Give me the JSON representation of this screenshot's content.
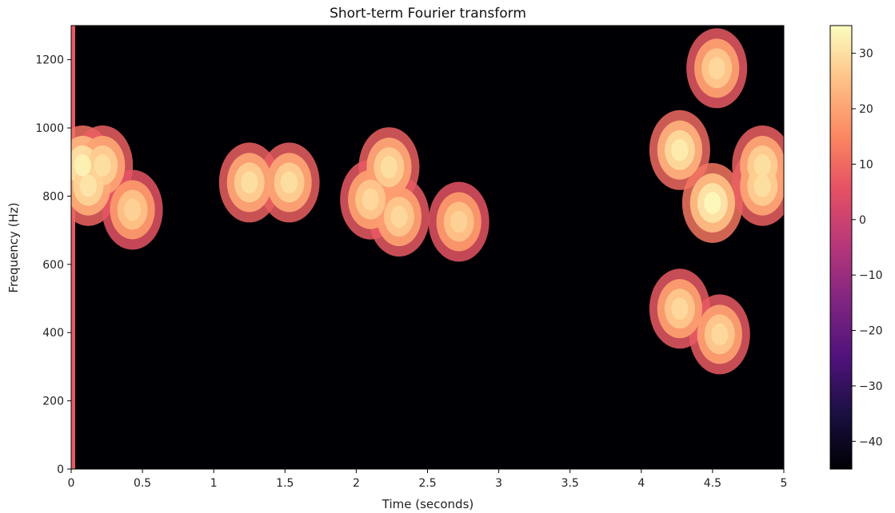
{
  "chart_data": {
    "type": "heatmap",
    "title": "Short-term Fourier transform",
    "xlabel": "Time (seconds)",
    "ylabel": "Frequency (Hz)",
    "xlim": [
      0,
      5
    ],
    "ylim": [
      0,
      1300
    ],
    "x_ticks": [
      0,
      0.5,
      1,
      1.5,
      2,
      2.5,
      3,
      3.5,
      4,
      4.5,
      5
    ],
    "x_tick_labels": [
      "0",
      "0.5",
      "1",
      "1.5",
      "2",
      "2.5",
      "3",
      "3.5",
      "4",
      "4.5",
      "5"
    ],
    "y_ticks": [
      0,
      200,
      400,
      600,
      800,
      1000,
      1200
    ],
    "y_tick_labels": [
      "0",
      "200",
      "400",
      "600",
      "800",
      "1000",
      "1200"
    ],
    "colorbar": {
      "range": [
        -45,
        35
      ],
      "ticks": [
        -40,
        -30,
        -20,
        -10,
        0,
        10,
        20,
        30
      ],
      "tick_labels": [
        "−40",
        "−30",
        "−20",
        "−10",
        "0",
        "10",
        "20",
        "30"
      ],
      "colormap": "magma"
    },
    "grid": false,
    "background_level": -45,
    "blobs": [
      {
        "t": 0.08,
        "f": 890,
        "level": 33
      },
      {
        "t": 0.22,
        "f": 890,
        "level": 30
      },
      {
        "t": 0.12,
        "f": 830,
        "level": 31
      },
      {
        "t": 0.43,
        "f": 760,
        "level": 28
      },
      {
        "t": 1.25,
        "f": 840,
        "level": 30
      },
      {
        "t": 1.53,
        "f": 840,
        "level": 30
      },
      {
        "t": 2.23,
        "f": 885,
        "level": 30
      },
      {
        "t": 2.1,
        "f": 790,
        "level": 29
      },
      {
        "t": 2.3,
        "f": 740,
        "level": 29
      },
      {
        "t": 2.72,
        "f": 725,
        "level": 28
      },
      {
        "t": 4.27,
        "f": 935,
        "level": 32
      },
      {
        "t": 4.5,
        "f": 780,
        "level": 34
      },
      {
        "t": 4.53,
        "f": 1175,
        "level": 29
      },
      {
        "t": 4.27,
        "f": 470,
        "level": 29
      },
      {
        "t": 4.55,
        "f": 395,
        "level": 29
      },
      {
        "t": 4.85,
        "f": 890,
        "level": 30
      },
      {
        "t": 4.85,
        "f": 830,
        "level": 30
      }
    ]
  }
}
